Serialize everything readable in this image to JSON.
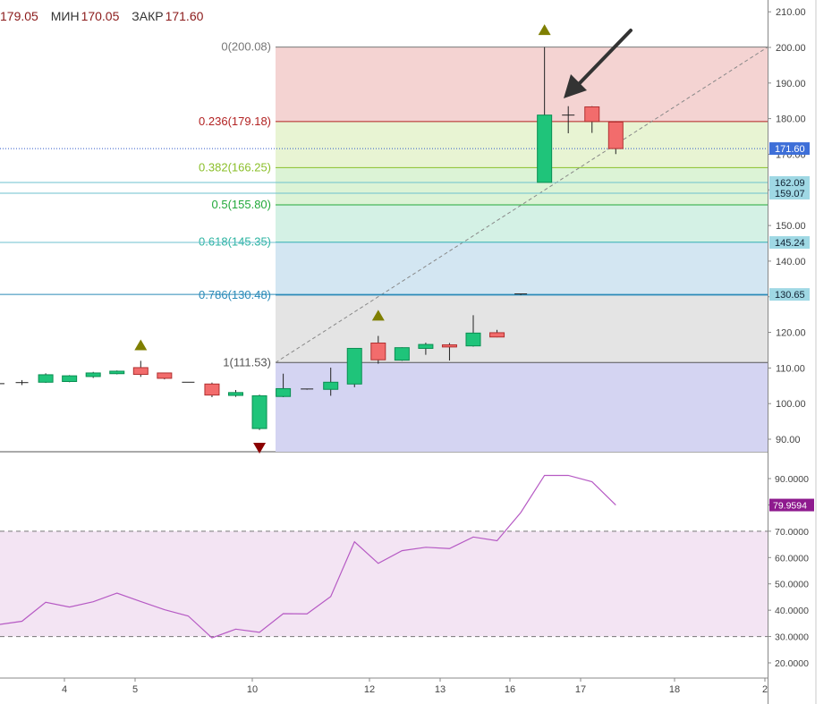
{
  "header": {
    "open_partial": "179.05",
    "low_label": "МИН",
    "low_value": "170.05",
    "close_label": "ЗАКР",
    "close_value": "171.60"
  },
  "chart_data": [
    {
      "type": "candlestick",
      "ylim": [
        85.5,
        213
      ],
      "y_ticks": [
        "210.00",
        "200.00",
        "190.00",
        "180.00",
        "170.00",
        "160.00",
        "150.00",
        "140.00",
        "130.00",
        "120.00",
        "110.00",
        "100.00",
        "90.00"
      ],
      "x_tick_labels": [
        "4",
        "5",
        "10",
        "12",
        "13",
        "16",
        "17",
        "18",
        "2"
      ],
      "candles": [
        {
          "o": 105.6,
          "h": 106.5,
          "l": 105,
          "c": 105.6
        },
        {
          "o": 105.7,
          "h": 106.6,
          "l": 105.2,
          "c": 105.9
        },
        {
          "o": 106,
          "h": 108.5,
          "l": 105.8,
          "c": 108.1
        },
        {
          "o": 106.2,
          "h": 108,
          "l": 106,
          "c": 107.8
        },
        {
          "o": 107.6,
          "h": 108.9,
          "l": 107.2,
          "c": 108.6
        },
        {
          "o": 108.4,
          "h": 109.3,
          "l": 108.2,
          "c": 109.1
        },
        {
          "o": 110.1,
          "h": 112,
          "l": 107.5,
          "c": 108.2
        },
        {
          "o": 108.6,
          "h": 108.6,
          "l": 106.8,
          "c": 107.1
        },
        {
          "o": 106,
          "h": 106,
          "l": 106,
          "c": 106
        },
        {
          "o": 105.5,
          "h": 105.9,
          "l": 101.8,
          "c": 102.4
        },
        {
          "o": 102.3,
          "h": 103.8,
          "l": 101.9,
          "c": 103.1
        },
        {
          "o": 93,
          "h": 102.5,
          "l": 92.6,
          "c": 102.2
        },
        {
          "o": 102,
          "h": 108.4,
          "l": 101.8,
          "c": 104.2
        },
        {
          "o": 104.1,
          "h": 104.2,
          "l": 103.9,
          "c": 104
        },
        {
          "o": 104,
          "h": 110.1,
          "l": 102.2,
          "c": 106
        },
        {
          "o": 105.5,
          "h": 115.6,
          "l": 104.6,
          "c": 115.5
        },
        {
          "o": 117,
          "h": 119,
          "l": 111.2,
          "c": 112.3
        },
        {
          "o": 112.2,
          "h": 115.8,
          "l": 112,
          "c": 115.7
        },
        {
          "o": 115.5,
          "h": 117.1,
          "l": 113.7,
          "c": 116.6
        },
        {
          "o": 116.5,
          "h": 117,
          "l": 112.1,
          "c": 115.9
        },
        {
          "o": 116.2,
          "h": 124.8,
          "l": 116,
          "c": 119.8
        },
        {
          "o": 119.9,
          "h": 120.7,
          "l": 118.6,
          "c": 118.7
        },
        {
          "o": 130.8,
          "h": 130.8,
          "l": 130.5,
          "c": 130.6
        },
        {
          "o": 162.1,
          "h": 200.1,
          "l": 162.1,
          "c": 181
        },
        {
          "o": 181,
          "h": 183.5,
          "l": 175.9,
          "c": 181
        },
        {
          "o": 183.3,
          "h": 183.5,
          "l": 176,
          "c": 179.2
        },
        {
          "o": 179.05,
          "h": 179.2,
          "l": 170.05,
          "c": 171.6
        }
      ],
      "fibonacci": {
        "levels": [
          {
            "label": "0(200.08)",
            "value": 200.08,
            "color": "#787878",
            "fill": "#f4d3d2"
          },
          {
            "label": "0.236(179.18)",
            "value": 179.18,
            "color": "#b22222",
            "fill": "#e8f4d3"
          },
          {
            "label": "0.382(166.25)",
            "value": 166.25,
            "color": "#8bbf2a",
            "fill": "#dcf3d6"
          },
          {
            "label": "0.5(155.80)",
            "value": 155.8,
            "color": "#22a83a",
            "fill": "#d4f1e5"
          },
          {
            "label": "0.618(145.35)",
            "value": 145.35,
            "color": "#2bb3a0",
            "fill": "#d3e6f2"
          },
          {
            "label": "0.786(130.48)",
            "value": 130.48,
            "color": "#2a8ab8",
            "fill": "#e4e4e4"
          },
          {
            "label": "1(111.53)",
            "value": 111.53,
            "color": "#555555",
            "fill": "#d4d4f2"
          }
        ]
      },
      "horizontal_lines": [
        {
          "value": 171.6,
          "label": "171.60",
          "color": "#2f57c9",
          "dotted": true
        },
        {
          "value": 162.09,
          "label": "162.09",
          "color": "#6cc1cf"
        },
        {
          "value": 159.07,
          "label": "159.07",
          "color": "#6cc1cf"
        },
        {
          "value": 145.24,
          "label": "145.24",
          "color": "#6cc1cf"
        },
        {
          "value": 130.65,
          "label": "130.65",
          "color": "#2a8ab8"
        }
      ],
      "markers": [
        {
          "bar": 6,
          "type": "up",
          "value": 116.5
        },
        {
          "bar": 11,
          "type": "down",
          "value": 87.5
        },
        {
          "bar": 16,
          "type": "up",
          "value": 124.8
        },
        {
          "bar": 23,
          "type": "up",
          "value": 205
        }
      ],
      "colors": {
        "up": "#1fc47a",
        "down": "#f26c6c",
        "marker_up": "#7f7f00",
        "marker_down": "#8b0000"
      }
    },
    {
      "type": "line",
      "ylim": [
        14,
        97
      ],
      "y_ticks": [
        "90.0000",
        "80.0000",
        "70.0000",
        "60.0000",
        "50.0000",
        "40.0000",
        "30.0000",
        "20.0000"
      ],
      "last_value": "79.9594",
      "bands": [
        30,
        70
      ],
      "series": [
        {
          "color": "#b65ac4",
          "values": [
            34.5,
            35.8,
            43,
            41.2,
            43.2,
            46.5,
            43.3,
            40.2,
            37.8,
            29.5,
            32.8,
            31.6,
            38.7,
            38.6,
            45.2,
            66,
            57.8,
            62.6,
            63.9,
            63.4,
            67.8,
            66.4,
            77.1,
            91.2,
            91.2,
            88.8,
            79.96
          ]
        }
      ]
    }
  ]
}
